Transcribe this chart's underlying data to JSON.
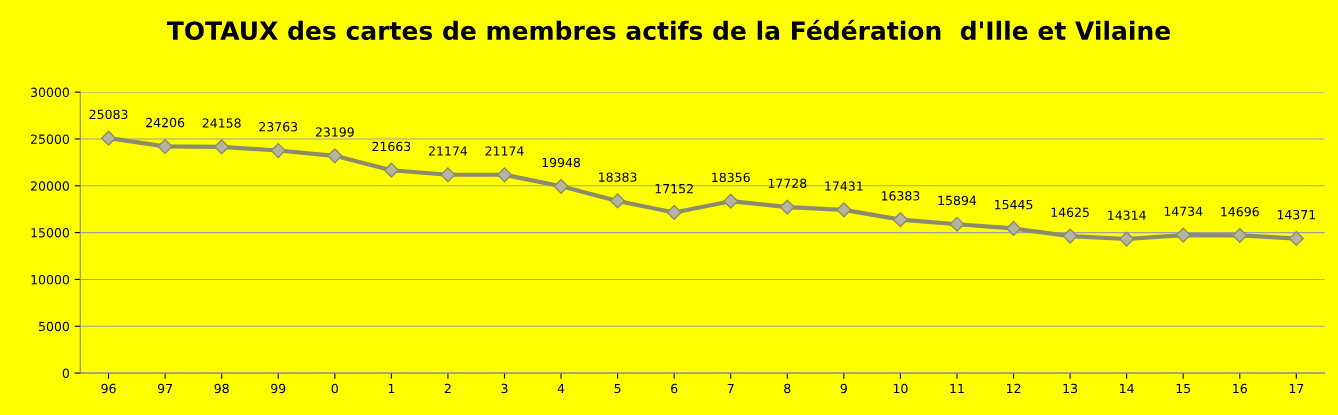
{
  "chart_data": {
    "type": "line",
    "title": "TOTAUX des cartes de membres actifs de la Fédération  d'Ille et Vilaine",
    "categories": [
      "96",
      "97",
      "98",
      "99",
      "0",
      "1",
      "2",
      "3",
      "4",
      "5",
      "6",
      "7",
      "8",
      "9",
      "10",
      "11",
      "12",
      "13",
      "14",
      "15",
      "16",
      "17"
    ],
    "series": [
      {
        "color": "#8c8c6c",
        "values": [
          25083,
          24206,
          24158,
          23763,
          23199,
          21663,
          21174,
          21174,
          19948,
          18383,
          17152,
          18356,
          17728,
          17431,
          16383,
          15894,
          15445,
          14625,
          14314,
          14734,
          14696,
          14371
        ]
      }
    ],
    "ylim": [
      0,
      30000
    ],
    "yticks": [
      0,
      5000,
      10000,
      15000,
      20000,
      25000,
      30000
    ],
    "grid": "y",
    "legend": false,
    "marker": "diamond",
    "line_style": "solid",
    "data_labels": true
  }
}
